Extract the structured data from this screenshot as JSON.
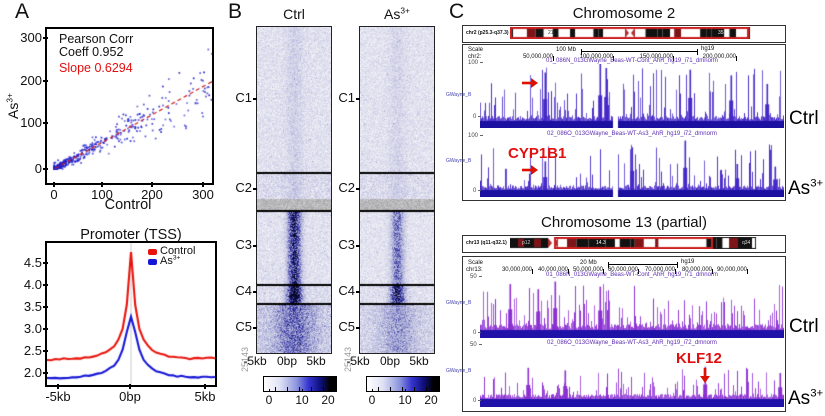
{
  "panels": {
    "a_label": "A",
    "b_label": "B",
    "c_label": "C"
  },
  "panel_a": {
    "scatter": {
      "annotation": {
        "line1": "Pearson Corr",
        "line2": "Coeff 0.952",
        "slope": "Slope 0.6294"
      },
      "xlabel": "Control",
      "ylabel_base": "As",
      "ylabel_sup": "3+",
      "yticks": [
        "300",
        "200",
        "100",
        "0"
      ],
      "xticks": [
        "0",
        "100",
        "200",
        "300"
      ]
    },
    "promoter": {
      "title": "Promoter (TSS)",
      "legend": [
        {
          "label": "Control",
          "sup": ""
        },
        {
          "label": "As",
          "sup": "3+"
        }
      ],
      "yticks": [
        "4.5",
        "4.0",
        "3.5",
        "3.0",
        "2.5",
        "2.0"
      ],
      "xticks": [
        "-5kb",
        "0bp",
        "5kb"
      ]
    }
  },
  "panel_b": {
    "col1_header": "Ctrl",
    "col2_header_base": "As",
    "col2_header_sup": "3+",
    "clusters": [
      "C1",
      "C2",
      "C3",
      "C4",
      "C5"
    ],
    "row_count": "25143",
    "xticks": [
      "-5kb",
      "0bp",
      "5kb"
    ],
    "colorbar_ticks": [
      "0",
      "10",
      "20"
    ]
  },
  "panel_c": {
    "chr2": {
      "title": "Chromosome 2",
      "ideogram_label": "chr2 (p25.3-q37.3)",
      "band_labels": [
        "21",
        "35"
      ],
      "scale_label": "Scale",
      "scale_value": "100 Mb",
      "assembly": "hg19",
      "coord_label": "chr2:",
      "coords": [
        "50,000,000",
        "100,000,000",
        "150,000,000",
        "200,000,000"
      ],
      "ymax": "100",
      "ymin": "0",
      "side_tag": "GWayne_B",
      "track1_title": "01_086N_013GWayne_Beas-WT-Cont_AhR_hg19_i71_dmnorm",
      "track2_title": "02_086O_013GWayne_Beas-WT-As3_AhR_hg19_i72_dmnorm",
      "track1_label": "Ctrl",
      "track2_label_base": "As",
      "track2_label_sup": "3+",
      "gene": "CYP1B1"
    },
    "chr13": {
      "title": "Chromosome 13 (partial)",
      "ideogram_label": "chr13 (q11-q32.1)",
      "band_labels": [
        "p12",
        "14.3",
        "q34"
      ],
      "scale_label": "Scale",
      "scale_value": "20 Mb",
      "assembly": "hg19",
      "coord_label": "chr13:",
      "coords": [
        "30,000,000",
        "40,000,000",
        "50,000,000",
        "60,000,000",
        "70,000,000",
        "80,000,000",
        "90,000,000"
      ],
      "ymax": "50",
      "ymin": "0",
      "side_tag": "GWayne_B",
      "track1_title": "01_086N_013GWayne_Beas-WT-Cont_AhR_hg19_i71_dmnorm",
      "track2_title": "02_086O_013GWayne_Beas-WT-As3_AhR_hg19_i72_dmnorm",
      "track1_label": "Ctrl",
      "track2_label_base": "As",
      "track2_label_sup": "3+",
      "gene": "KLF12"
    }
  },
  "colors": {
    "accent_red": "#e01010",
    "scatter_point": "#2222cc",
    "trendline": "#cc2020",
    "control_line": "#e8140c",
    "as3_line": "#1616d6",
    "track_chr2": "#4628c8",
    "track_chr2_base": "#1b10a0",
    "track_chr13": "#8b2fd2",
    "track_chr13_base": "#2012a8",
    "track_title": "#5b2db0"
  },
  "chart_data": [
    {
      "id": "scatter_correlation",
      "type": "scatter",
      "xlabel": "Control",
      "ylabel": "As3+",
      "xlim": [
        0,
        320
      ],
      "ylim": [
        0,
        320
      ],
      "xticks": [
        0,
        100,
        200,
        300
      ],
      "yticks": [
        0,
        100,
        200,
        300
      ],
      "pearson_corr": 0.952,
      "slope": 0.6294,
      "trendline_style": "dashed",
      "point_color": "#2222cc",
      "trendline_color": "#cc2020",
      "n_points": 650,
      "distribution_note": "dense cluster near origin (0-60), sparse tail to ~310 along y=0.6294x"
    },
    {
      "id": "promoter_tss_profile",
      "type": "line",
      "title": "Promoter (TSS)",
      "x_unit": "kb from TSS",
      "x": [
        -5,
        -4.75,
        -4.5,
        -4.25,
        -4,
        -3.75,
        -3.5,
        -3.25,
        -3,
        -2.75,
        -2.5,
        -2.25,
        -2,
        -1.75,
        -1.5,
        -1.25,
        -1,
        -0.75,
        -0.5,
        -0.25,
        0,
        0.25,
        0.5,
        0.75,
        1,
        1.25,
        1.5,
        1.75,
        2,
        2.25,
        2.5,
        2.75,
        3,
        3.25,
        3.5,
        3.75,
        4,
        4.25,
        4.5,
        4.75,
        5
      ],
      "series": [
        {
          "name": "Control",
          "color": "#e8140c",
          "values": [
            2.3,
            2.3,
            2.31,
            2.31,
            2.32,
            2.32,
            2.33,
            2.33,
            2.34,
            2.35,
            2.36,
            2.38,
            2.4,
            2.43,
            2.47,
            2.53,
            2.62,
            2.76,
            3.0,
            3.55,
            4.75,
            3.55,
            3.0,
            2.76,
            2.62,
            2.53,
            2.47,
            2.43,
            2.4,
            2.38,
            2.36,
            2.35,
            2.34,
            2.34,
            2.33,
            2.33,
            2.33,
            2.34,
            2.34,
            2.35,
            2.35
          ]
        },
        {
          "name": "As3+",
          "color": "#1616d6",
          "values": [
            1.88,
            1.88,
            1.88,
            1.89,
            1.89,
            1.9,
            1.9,
            1.91,
            1.92,
            1.93,
            1.94,
            1.96,
            1.98,
            2.01,
            2.05,
            2.1,
            2.18,
            2.3,
            2.53,
            2.93,
            3.28,
            2.93,
            2.53,
            2.3,
            2.18,
            2.1,
            2.05,
            2.01,
            1.98,
            1.96,
            1.94,
            1.93,
            1.92,
            1.91,
            1.91,
            1.9,
            1.9,
            1.9,
            1.9,
            1.91,
            1.91
          ]
        }
      ],
      "ylim": [
        1.75,
        4.9
      ],
      "yticks": [
        2.0,
        2.5,
        3.0,
        3.5,
        4.0,
        4.5
      ],
      "xtick_labels": [
        "-5kb",
        "0bp",
        "5kb"
      ],
      "legend_position": "top-right"
    },
    {
      "id": "heatmap_clusters",
      "type": "heatmap",
      "columns": [
        "Ctrl",
        "As3+"
      ],
      "clusters": [
        "C1",
        "C2",
        "C3",
        "C4",
        "C5"
      ],
      "cluster_boundaries_frac": [
        0,
        0.448,
        0.564,
        0.791,
        0.85,
        1.0
      ],
      "x_range_labels": [
        "-5kb",
        "0bp",
        "5kb"
      ],
      "row_count": 25143,
      "colorbar": {
        "min": 0,
        "max": 25,
        "ticks": [
          0,
          10,
          20
        ],
        "colors": [
          "#ffffff",
          "#3535cf",
          "#000000"
        ]
      },
      "center_enrichment": {
        "Ctrl": {
          "C1": 0.1,
          "C2": 0.1,
          "C3": 0.85,
          "C4": 1.1,
          "C5": 0.4
        },
        "As3+": {
          "C1": 0.08,
          "C2": 0.08,
          "C3": 0.5,
          "C4": 0.85,
          "C5": 0.28
        }
      }
    },
    {
      "id": "genome_browser_chr2",
      "type": "area",
      "genome": "hg19",
      "region_label": "chr2 (p25.3-q37.3)",
      "scale_bar": "100 Mb",
      "coordinate_ticks": [
        50000000,
        100000000,
        150000000,
        200000000
      ],
      "tracks": [
        {
          "name": "01_086N_013GWayne_Beas-WT-Cont_AhR_hg19_i71_dmnorm",
          "label": "Ctrl",
          "ymin": 0,
          "ymax": 100
        },
        {
          "name": "02_086O_013GWayne_Beas-WT-As3_AhR_hg19_i72_dmnorm",
          "label": "As3+",
          "ymin": 0,
          "ymax": 100
        }
      ],
      "highlighted_gene": "CYP1B1"
    },
    {
      "id": "genome_browser_chr13",
      "type": "area",
      "genome": "hg19",
      "region_label": "chr13 (q11-q32.1)",
      "scale_bar": "20 Mb",
      "coordinate_ticks": [
        30000000,
        40000000,
        50000000,
        60000000,
        70000000,
        80000000,
        90000000
      ],
      "tracks": [
        {
          "name": "01_086N_013GWayne_Beas-WT-Cont_AhR_hg19_i71_dmnorm",
          "label": "Ctrl",
          "ymin": 0,
          "ymax": 50
        },
        {
          "name": "02_086O_013GWayne_Beas-WT-As3_AhR_hg19_i72_dmnorm",
          "label": "As3+",
          "ymin": 0,
          "ymax": 50
        }
      ],
      "highlighted_gene": "KLF12"
    }
  ]
}
